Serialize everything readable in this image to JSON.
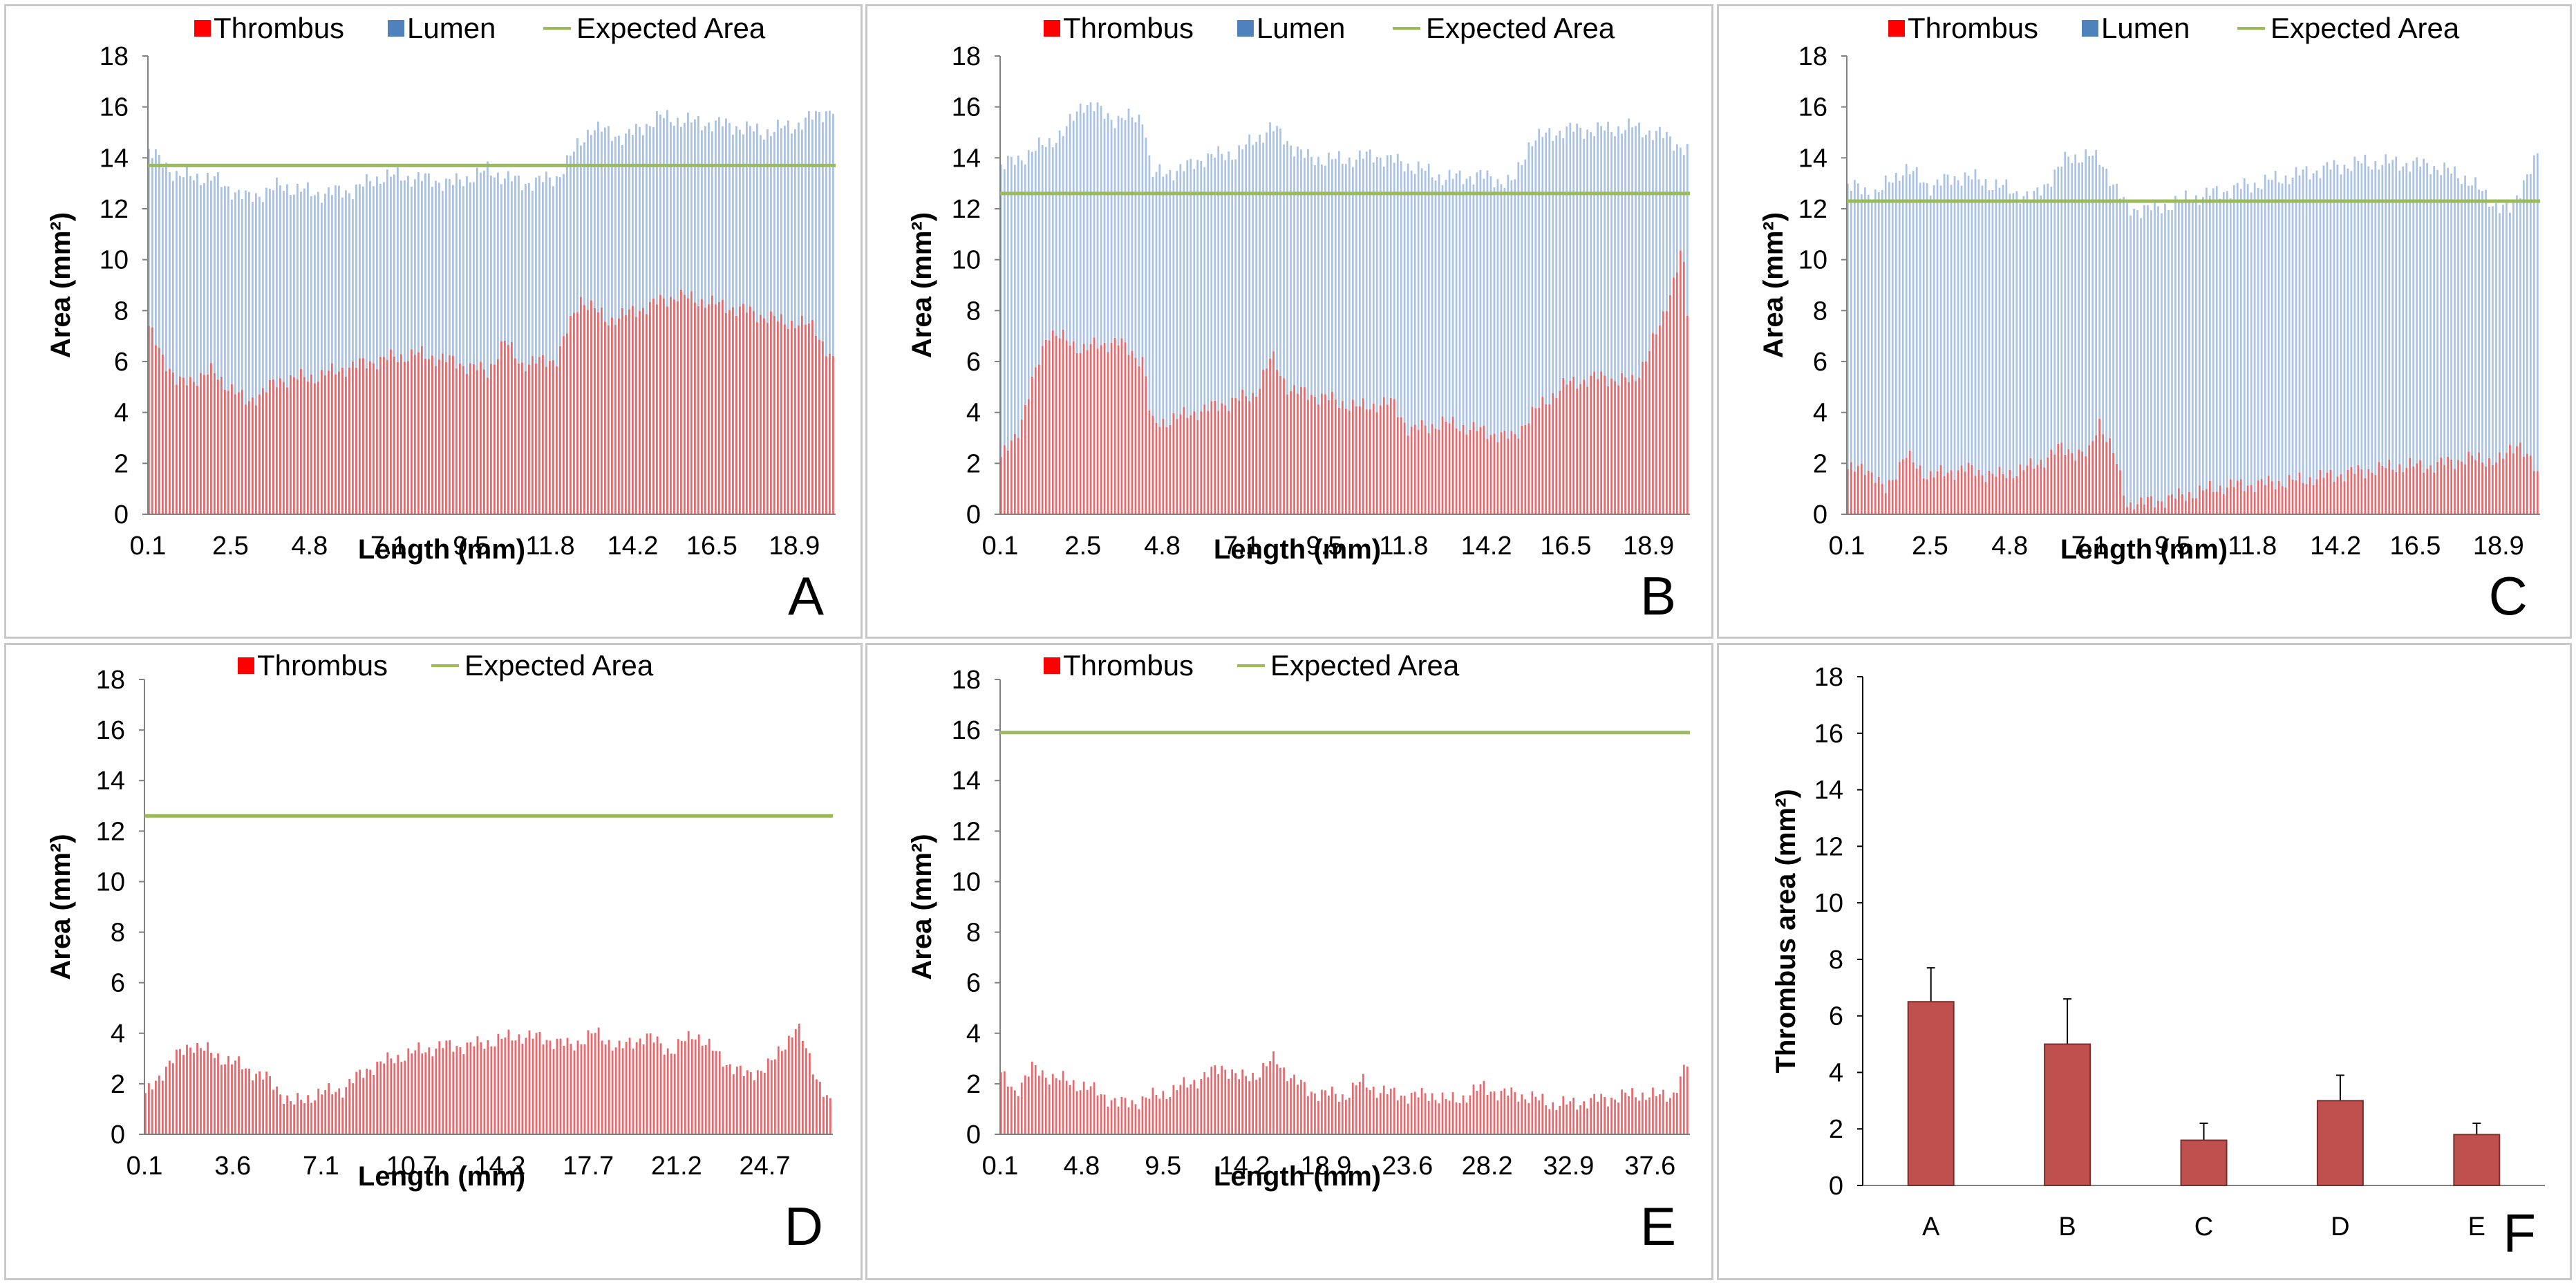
{
  "colors": {
    "thrombus": "#e8686b",
    "thrombus_legend": "#ff0000",
    "lumen": "#a9c2e6",
    "lumen_legend": "#4f81bd",
    "expected": "#9bbb59",
    "bar": "#c0504d"
  },
  "chart_data": [
    {
      "panel": "A",
      "type": "bar",
      "stacked": true,
      "legend": [
        "Thrombus",
        "Lumen",
        "Expected Area"
      ],
      "xlabel": "Length (mm)",
      "ylabel": "Area (mm²)",
      "ylim": [
        0,
        18
      ],
      "yticks": [
        "0",
        "2",
        "4",
        "6",
        "8",
        "10",
        "12",
        "14",
        "16",
        "18"
      ],
      "xticks": [
        "0.1",
        "2.5",
        "4.8",
        "7.1",
        "9.5",
        "11.8",
        "14.2",
        "16.5",
        "18.9"
      ],
      "x_range": [
        0.1,
        20.1
      ],
      "expected_area": 13.7,
      "thrombus_profile": [
        [
          0.1,
          7.4
        ],
        [
          1,
          5.1
        ],
        [
          2,
          5.6
        ],
        [
          3,
          4.4
        ],
        [
          4,
          5.3
        ],
        [
          5,
          5.4
        ],
        [
          6,
          5.8
        ],
        [
          7,
          6.1
        ],
        [
          8,
          6.3
        ],
        [
          9,
          6.0
        ],
        [
          10,
          5.6
        ],
        [
          10.5,
          6.8
        ],
        [
          11,
          5.9
        ],
        [
          12,
          6.1
        ],
        [
          12.7,
          8.5
        ],
        [
          13.5,
          7.6
        ],
        [
          14.5,
          8.1
        ],
        [
          15.5,
          8.6
        ],
        [
          16.5,
          8.3
        ],
        [
          17.5,
          8.0
        ],
        [
          18.5,
          7.6
        ],
        [
          19.5,
          7.4
        ],
        [
          20.1,
          5.8
        ]
      ],
      "total_profile": [
        [
          0.1,
          14.3
        ],
        [
          1,
          13.3
        ],
        [
          2,
          13.2
        ],
        [
          3,
          12.4
        ],
        [
          4,
          12.9
        ],
        [
          5,
          12.6
        ],
        [
          6,
          12.7
        ],
        [
          7,
          13.3
        ],
        [
          8,
          13.2
        ],
        [
          9,
          13.0
        ],
        [
          10,
          13.5
        ],
        [
          11,
          13.0
        ],
        [
          12,
          13.2
        ],
        [
          12.5,
          14.2
        ],
        [
          13,
          15.2
        ],
        [
          14,
          14.8
        ],
        [
          15,
          15.6
        ],
        [
          16,
          15.4
        ],
        [
          17,
          15.3
        ],
        [
          18,
          15.0
        ],
        [
          19,
          15.3
        ],
        [
          20.1,
          16.0
        ]
      ]
    },
    {
      "panel": "B",
      "type": "bar",
      "stacked": true,
      "legend": [
        "Thrombus",
        "Lumen",
        "Expected Area"
      ],
      "xlabel": "Length (mm)",
      "ylabel": "Area (mm²)",
      "ylim": [
        0,
        18
      ],
      "yticks": [
        "0",
        "2",
        "4",
        "6",
        "8",
        "10",
        "12",
        "14",
        "16",
        "18"
      ],
      "xticks": [
        "0.1",
        "2.5",
        "4.8",
        "7.1",
        "9.5",
        "11.8",
        "14.2",
        "16.5",
        "18.9"
      ],
      "x_range": [
        0.1,
        20.1
      ],
      "expected_area": 12.6,
      "thrombus_profile": [
        [
          0.1,
          2.0
        ],
        [
          0.7,
          3.5
        ],
        [
          1.5,
          7.2
        ],
        [
          2.5,
          6.5
        ],
        [
          3.5,
          6.8
        ],
        [
          4.3,
          6.0
        ],
        [
          4.5,
          3.5
        ],
        [
          5.5,
          3.9
        ],
        [
          6.5,
          4.3
        ],
        [
          7.5,
          4.7
        ],
        [
          8,
          6.2
        ],
        [
          8.5,
          4.9
        ],
        [
          9.5,
          4.6
        ],
        [
          10.5,
          4.2
        ],
        [
          11.5,
          4.4
        ],
        [
          12,
          3.3
        ],
        [
          13,
          3.6
        ],
        [
          14,
          3.3
        ],
        [
          15,
          3.0
        ],
        [
          15.5,
          3.9
        ],
        [
          16.5,
          5.1
        ],
        [
          17.5,
          5.4
        ],
        [
          18.5,
          5.2
        ],
        [
          19.3,
          7.5
        ],
        [
          19.9,
          10.5
        ],
        [
          20.1,
          7.0
        ]
      ],
      "total_profile": [
        [
          0.1,
          13.6
        ],
        [
          1,
          14.2
        ],
        [
          2,
          15.0
        ],
        [
          2.5,
          16.2
        ],
        [
          3.5,
          15.5
        ],
        [
          4.3,
          15.6
        ],
        [
          4.5,
          13.3
        ],
        [
          5.5,
          13.6
        ],
        [
          6,
          14.0
        ],
        [
          7,
          14.2
        ],
        [
          8,
          15.2
        ],
        [
          9,
          14.0
        ],
        [
          10,
          13.9
        ],
        [
          11,
          14.1
        ],
        [
          12,
          13.7
        ],
        [
          13,
          13.2
        ],
        [
          14,
          13.3
        ],
        [
          15,
          13.0
        ],
        [
          15.5,
          14.7
        ],
        [
          16.5,
          15.1
        ],
        [
          17.5,
          15.1
        ],
        [
          18.5,
          15.2
        ],
        [
          19.5,
          14.8
        ],
        [
          20.1,
          14.2
        ]
      ]
    },
    {
      "panel": "C",
      "type": "bar",
      "stacked": true,
      "legend": [
        "Thrombus",
        "Lumen",
        "Expected Area"
      ],
      "xlabel": "Length (mm)",
      "ylabel": "Area (mm²)",
      "ylim": [
        0,
        18
      ],
      "yticks": [
        "0",
        "2",
        "4",
        "6",
        "8",
        "10",
        "12",
        "14",
        "16",
        "18"
      ],
      "xticks": [
        "0.1",
        "2.5",
        "4.8",
        "7.1",
        "9.5",
        "11.8",
        "14.2",
        "16.5",
        "18.9"
      ],
      "x_range": [
        0.1,
        20.1
      ],
      "expected_area": 12.3,
      "thrombus_profile": [
        [
          0.1,
          1.6
        ],
        [
          0.6,
          2.0
        ],
        [
          1.2,
          0.9
        ],
        [
          1.8,
          2.3
        ],
        [
          2.5,
          1.5
        ],
        [
          3.5,
          1.8
        ],
        [
          4.5,
          1.5
        ],
        [
          5.5,
          1.9
        ],
        [
          6.3,
          2.6
        ],
        [
          7.1,
          2.3
        ],
        [
          7.4,
          3.7
        ],
        [
          7.8,
          2.5
        ],
        [
          8.2,
          0.4
        ],
        [
          9,
          0.5
        ],
        [
          10,
          0.8
        ],
        [
          11,
          1.1
        ],
        [
          12,
          1.2
        ],
        [
          13,
          1.3
        ],
        [
          14,
          1.5
        ],
        [
          15,
          1.7
        ],
        [
          16,
          1.9
        ],
        [
          17,
          1.9
        ],
        [
          18,
          2.2
        ],
        [
          19,
          2.1
        ],
        [
          19.5,
          2.9
        ],
        [
          20.1,
          1.4
        ]
      ],
      "total_profile": [
        [
          0.1,
          12.9
        ],
        [
          1,
          12.6
        ],
        [
          1.8,
          13.6
        ],
        [
          2.5,
          12.9
        ],
        [
          3.5,
          13.3
        ],
        [
          4.5,
          12.9
        ],
        [
          5.5,
          12.4
        ],
        [
          6.5,
          14.0
        ],
        [
          7.1,
          14.1
        ],
        [
          7.5,
          13.8
        ],
        [
          8.2,
          12.0
        ],
        [
          9,
          12.0
        ],
        [
          10,
          12.4
        ],
        [
          11,
          12.7
        ],
        [
          12,
          13.0
        ],
        [
          13,
          13.3
        ],
        [
          14,
          13.6
        ],
        [
          15,
          13.8
        ],
        [
          16,
          13.8
        ],
        [
          17,
          13.7
        ],
        [
          18,
          13.2
        ],
        [
          18.8,
          12.2
        ],
        [
          19.3,
          11.9
        ],
        [
          19.7,
          13.3
        ],
        [
          20.1,
          14.1
        ]
      ]
    },
    {
      "panel": "D",
      "type": "bar",
      "stacked": false,
      "legend": [
        "Thrombus",
        "Expected Area"
      ],
      "xlabel": "Length (mm)",
      "ylabel": "Area (mm²)",
      "ylim": [
        0,
        18
      ],
      "yticks": [
        "0",
        "2",
        "4",
        "6",
        "8",
        "10",
        "12",
        "14",
        "16",
        "18"
      ],
      "xticks": [
        "0.1",
        "3.6",
        "7.1",
        "10.7",
        "14.2",
        "17.7",
        "21.2",
        "24.7"
      ],
      "x_range": [
        0.1,
        27.4
      ],
      "expected_area": 12.6,
      "thrombus_profile": [
        [
          0.1,
          1.4
        ],
        [
          1,
          2.7
        ],
        [
          2,
          3.6
        ],
        [
          3,
          3.1
        ],
        [
          4,
          2.7
        ],
        [
          5,
          2.2
        ],
        [
          6,
          1.2
        ],
        [
          7,
          1.6
        ],
        [
          8,
          1.8
        ],
        [
          9,
          2.6
        ],
        [
          10,
          3.0
        ],
        [
          11,
          3.3
        ],
        [
          12,
          3.5
        ],
        [
          13,
          3.5
        ],
        [
          14,
          3.7
        ],
        [
          15,
          3.9
        ],
        [
          16,
          3.8
        ],
        [
          17,
          3.5
        ],
        [
          18,
          4.0
        ],
        [
          19,
          3.4
        ],
        [
          20,
          3.9
        ],
        [
          21,
          3.3
        ],
        [
          22,
          4.0
        ],
        [
          23,
          3.0
        ],
        [
          24,
          2.3
        ],
        [
          25,
          2.8
        ],
        [
          26,
          4.3
        ],
        [
          26.7,
          2.5
        ],
        [
          27.4,
          1.0
        ]
      ]
    },
    {
      "panel": "E",
      "type": "bar",
      "stacked": false,
      "legend": [
        "Thrombus",
        "Expected Area"
      ],
      "xlabel": "Length (mm)",
      "ylabel": "Area (mm²)",
      "ylim": [
        0,
        18
      ],
      "yticks": [
        "0",
        "2",
        "4",
        "6",
        "8",
        "10",
        "12",
        "14",
        "16",
        "18"
      ],
      "xticks": [
        "0.1",
        "4.8",
        "9.5",
        "14.2",
        "18.9",
        "23.6",
        "28.2",
        "32.9",
        "37.6"
      ],
      "x_range": [
        0.1,
        39.9
      ],
      "expected_area": 15.9,
      "thrombus_profile": [
        [
          0.1,
          2.4
        ],
        [
          1,
          1.7
        ],
        [
          2,
          2.6
        ],
        [
          3,
          2.3
        ],
        [
          4,
          2.1
        ],
        [
          5,
          1.9
        ],
        [
          6,
          1.6
        ],
        [
          7,
          1.2
        ],
        [
          8,
          1.3
        ],
        [
          9,
          1.5
        ],
        [
          10,
          1.7
        ],
        [
          11,
          2.0
        ],
        [
          12,
          2.3
        ],
        [
          13,
          2.7
        ],
        [
          14,
          2.2
        ],
        [
          15,
          2.4
        ],
        [
          16,
          3.0
        ],
        [
          17,
          2.2
        ],
        [
          18,
          1.7
        ],
        [
          19,
          1.6
        ],
        [
          20,
          1.5
        ],
        [
          21,
          2.1
        ],
        [
          22,
          1.7
        ],
        [
          23,
          1.6
        ],
        [
          24,
          1.5
        ],
        [
          25,
          1.6
        ],
        [
          26,
          1.3
        ],
        [
          27,
          1.5
        ],
        [
          28,
          1.9
        ],
        [
          29,
          1.6
        ],
        [
          30,
          1.6
        ],
        [
          31,
          1.4
        ],
        [
          32,
          1.2
        ],
        [
          33,
          1.2
        ],
        [
          34,
          1.3
        ],
        [
          35,
          1.4
        ],
        [
          36,
          1.5
        ],
        [
          37,
          1.6
        ],
        [
          38,
          1.5
        ],
        [
          39,
          1.6
        ],
        [
          39.9,
          2.9
        ]
      ]
    },
    {
      "panel": "F",
      "type": "bar",
      "stacked": false,
      "legend": [],
      "xlabel": "",
      "ylabel": "Thrombus area (mm²)",
      "ylim": [
        0,
        18
      ],
      "yticks": [
        "0",
        "2",
        "4",
        "6",
        "8",
        "10",
        "12",
        "14",
        "16",
        "18"
      ],
      "categories": [
        "A",
        "B",
        "C",
        "D",
        "E"
      ],
      "values": [
        6.5,
        5.0,
        1.6,
        3.0,
        1.8
      ],
      "errors": [
        1.2,
        1.6,
        0.6,
        0.9,
        0.4
      ]
    }
  ]
}
